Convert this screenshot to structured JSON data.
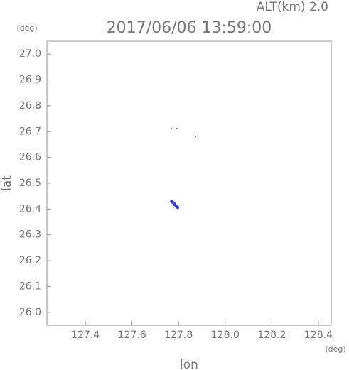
{
  "chart_data": {
    "type": "scatter",
    "title": "2017/06/06 13:59:00",
    "subtitle": "ALT(km) 2.0",
    "x_label": "lon",
    "y_label": "lat",
    "x_unit": "(deg)",
    "y_unit": "(deg)",
    "xlim": [
      127.235,
      128.455
    ],
    "ylim": [
      25.95,
      27.05
    ],
    "xticks": [
      127.4,
      127.6,
      127.8,
      {
        "value": 128.0,
        "label": "128.0"
      },
      128.2,
      128.4
    ],
    "yticks": [
      {
        "value": 26.0,
        "label": "26.0"
      },
      26.1,
      26.2,
      26.3,
      26.4,
      26.5,
      26.6,
      26.7,
      26.8,
      26.9,
      {
        "value": 27.0,
        "label": "27.0"
      }
    ],
    "series": [
      {
        "color": "#000000",
        "x": [
          127.768,
          127.793,
          127.872
        ],
        "y": [
          26.714,
          26.712,
          26.681
        ]
      },
      {
        "color": "#3340d8",
        "x": [
          127.77,
          127.775,
          127.78,
          127.784,
          127.79,
          127.796
        ],
        "y": [
          26.43,
          26.426,
          26.422,
          26.417,
          26.411,
          26.406
        ]
      }
    ]
  }
}
